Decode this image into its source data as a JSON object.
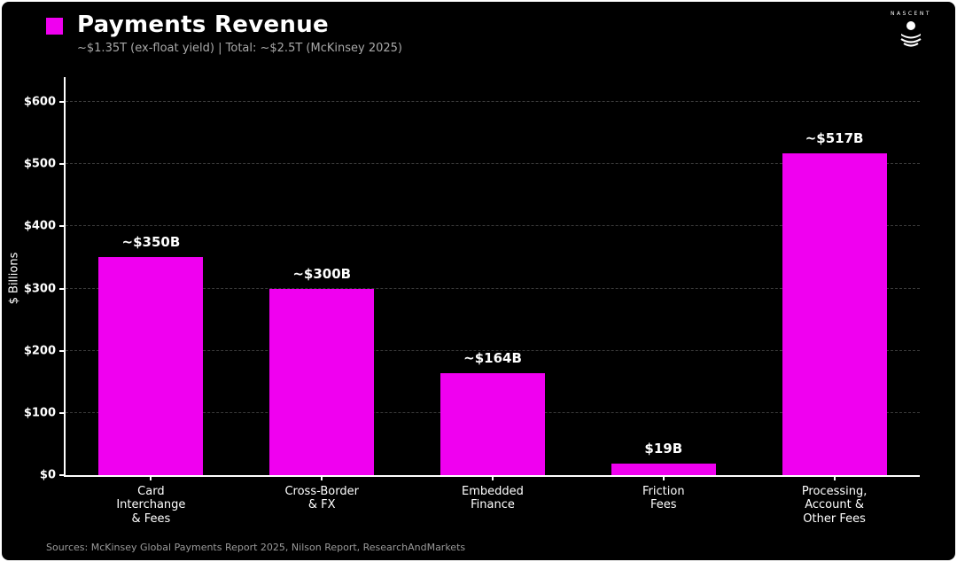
{
  "header": {
    "title": "Payments Revenue",
    "subtitle": "~$1.35T (ex-float yield)  |  Total: ~$2.5T (McKinsey 2025)",
    "logo_text": "NASCENT"
  },
  "footer": {
    "sources": "Sources: McKinsey Global Payments Report 2025, Nilson Report, ResearchAndMarkets"
  },
  "colors": {
    "background": "#000000",
    "bar": "#f000f0",
    "text": "#ffffff",
    "subtitle_text": "#a9a9a9",
    "gridline": "#3b3b3b"
  },
  "chart_data": {
    "type": "bar",
    "title": "Payments Revenue",
    "subtitle": "~$1.35T (ex-float yield)  |  Total: ~$2.5T (McKinsey 2025)",
    "categories": [
      "Card\nInterchange\n& Fees",
      "Cross-Border\n& FX",
      "Embedded\nFinance",
      "Friction\nFees",
      "Processing,\nAccount &\nOther Fees"
    ],
    "values": [
      350,
      300,
      164,
      19,
      517
    ],
    "value_labels": [
      "~$350B",
      "~$300B",
      "~$164B",
      "$19B",
      "~$517B"
    ],
    "xlabel": "",
    "ylabel": "$ Billions",
    "yticks": [
      0,
      100,
      200,
      300,
      400,
      500,
      600
    ],
    "ytick_labels": [
      "$0",
      "$100",
      "$200",
      "$300",
      "$400",
      "$500",
      "$600"
    ],
    "ylim": [
      0,
      640
    ],
    "grid": "horizontal-dashed",
    "legend_position": "title-swatch",
    "bar_color": "#f000f0"
  }
}
